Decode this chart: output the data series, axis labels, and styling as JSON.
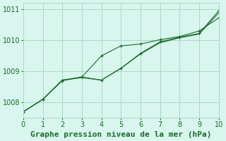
{
  "title": "Graphe pression niveau de la mer (hPa)",
  "xlim": [
    0,
    10
  ],
  "ylim": [
    1007.5,
    1011.2
  ],
  "yticks": [
    1008,
    1009,
    1010,
    1011
  ],
  "xticks": [
    0,
    1,
    2,
    3,
    4,
    5,
    6,
    7,
    8,
    9,
    10
  ],
  "bg_color": "#d8f5ee",
  "grid_color": "#aad8c8",
  "line_color": "#1a6b2a",
  "series1_x": [
    0,
    1,
    2,
    3,
    4,
    5,
    6,
    7,
    8,
    9,
    10
  ],
  "series1_y": [
    1007.7,
    1008.1,
    1008.7,
    1008.82,
    1008.72,
    1009.1,
    1009.58,
    1009.95,
    1010.1,
    1010.22,
    1010.95
  ],
  "series2_x": [
    0,
    1,
    2,
    3,
    4,
    5,
    6,
    7,
    8,
    9,
    10
  ],
  "series2_y": [
    1007.7,
    1008.1,
    1008.72,
    1008.82,
    1009.5,
    1009.82,
    1009.88,
    1010.02,
    1010.12,
    1010.3,
    1010.72
  ],
  "series3_x": [
    0,
    1,
    2,
    3,
    4,
    5,
    6,
    7,
    8,
    9,
    10
  ],
  "series3_y": [
    1007.7,
    1008.1,
    1008.72,
    1008.8,
    1008.72,
    1009.1,
    1009.56,
    1009.92,
    1010.08,
    1010.2,
    1010.88
  ],
  "tick_fontsize": 7,
  "xlabel_fontsize": 8,
  "marker": "+"
}
